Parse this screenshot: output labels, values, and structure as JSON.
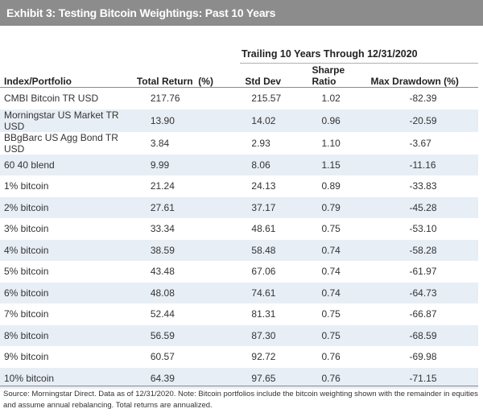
{
  "title": "Exhibit 3: Testing Bitcoin Weightings: Past 10 Years",
  "super_header": "Trailing 10 Years Through 12/31/2020",
  "columns": [
    "Index/Portfolio",
    "Total Return  (%)",
    "Std Dev",
    "Sharpe Ratio",
    "Max Drawdown (%)"
  ],
  "rows": [
    [
      "CMBI Bitcoin TR USD",
      "217.76",
      "215.57",
      "1.02",
      "-82.39"
    ],
    [
      "Morningstar US Market TR USD",
      "13.90",
      "14.02",
      "0.96",
      "-20.59"
    ],
    [
      "BBgBarc US Agg Bond TR USD",
      "3.84",
      "2.93",
      "1.10",
      "-3.67"
    ],
    [
      "60 40 blend",
      "9.99",
      "8.06",
      "1.15",
      "-11.16"
    ],
    [
      "1% bitcoin",
      "21.24",
      "24.13",
      "0.89",
      "-33.83"
    ],
    [
      "2% bitcoin",
      "27.61",
      "37.17",
      "0.79",
      "-45.28"
    ],
    [
      "3% bitcoin",
      "33.34",
      "48.61",
      "0.75",
      "-53.10"
    ],
    [
      "4% bitcoin",
      "38.59",
      "58.48",
      "0.74",
      "-58.28"
    ],
    [
      "5% bitcoin",
      "43.48",
      "67.06",
      "0.74",
      "-61.97"
    ],
    [
      "6% bitcoin",
      "48.08",
      "74.61",
      "0.74",
      "-64.73"
    ],
    [
      "7% bitcoin",
      "52.44",
      "81.31",
      "0.75",
      "-66.87"
    ],
    [
      "8% bitcoin",
      "56.59",
      "87.30",
      "0.75",
      "-68.59"
    ],
    [
      "9% bitcoin",
      "60.57",
      "92.72",
      "0.76",
      "-69.98"
    ],
    [
      "10% bitcoin",
      "64.39",
      "97.65",
      "0.76",
      "-71.15"
    ]
  ],
  "source": "Source: Morningstar Direct. Data as of 12/31/2020. Note: Bitcoin portfolios include the bitcoin weighting shown with the remainder in equities and assume annual rebalancing. Total returns are annualized.",
  "colors": {
    "title_bar": "#8c8c8c",
    "row_stripe": "#e8eef6"
  }
}
